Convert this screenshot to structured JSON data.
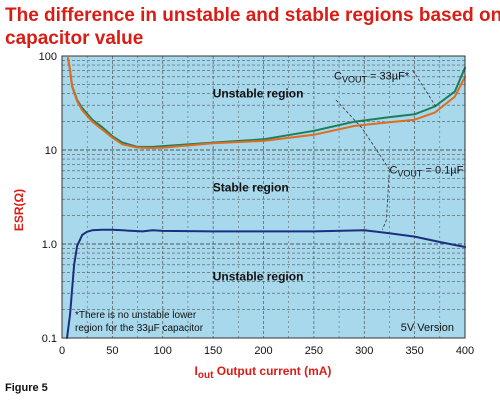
{
  "chart_data": {
    "type": "line",
    "title_lines": [
      "The difference in unstable and stable regions based on output",
      "capacitor value"
    ],
    "xlabel_prefix": "I",
    "xlabel_sub": "out",
    "xlabel_rest": " Output current (mA)",
    "ylabel": "ESR(Ω)",
    "x_ticks": [
      0,
      50,
      100,
      150,
      200,
      250,
      300,
      350,
      400
    ],
    "y_ticks": [
      {
        "value": 0.1,
        "label": "0.1"
      },
      {
        "value": 1,
        "label": "1.0"
      },
      {
        "value": 10,
        "label": "10"
      },
      {
        "value": 100,
        "label": "100"
      }
    ],
    "xlim": [
      0,
      400
    ],
    "ylim": [
      0.1,
      100
    ],
    "y_scale": "log",
    "grid": true,
    "colors": {
      "plot_bg": "#a8d8ec",
      "grid": "#555555",
      "green": "#1a7f5a",
      "orange": "#e06c21",
      "navy": "#1b2f7e",
      "title": "#d91c16"
    },
    "series": [
      {
        "name": "",
        "color": "green",
        "x": [
          6,
          8,
          10,
          15,
          20,
          30,
          40,
          50,
          60,
          75,
          90,
          100,
          150,
          200,
          250,
          290,
          320,
          350,
          370,
          390,
          400
        ],
        "y": [
          95,
          70,
          48,
          34,
          28,
          21,
          17.5,
          14,
          12,
          10.8,
          10.8,
          11,
          12,
          13,
          16,
          20,
          22,
          24,
          29,
          42,
          75
        ]
      },
      {
        "name": "",
        "color": "orange",
        "x": [
          6,
          8,
          10,
          15,
          20,
          30,
          40,
          50,
          60,
          75,
          90,
          100,
          150,
          200,
          250,
          290,
          320,
          350,
          370,
          390,
          400
        ],
        "y": [
          95,
          70,
          47,
          33,
          26.5,
          20,
          16.5,
          13.5,
          11.5,
          10.6,
          10.5,
          10.6,
          11.8,
          12.5,
          14.5,
          18,
          19.5,
          21,
          25,
          37,
          60
        ]
      },
      {
        "name": "",
        "color": "navy",
        "x": [
          5,
          8,
          10,
          12,
          15,
          20,
          25,
          30,
          40,
          50,
          60,
          70,
          80,
          90,
          100,
          150,
          200,
          250,
          300,
          325,
          350,
          375,
          400
        ],
        "y": [
          0.1,
          0.18,
          0.33,
          0.6,
          0.95,
          1.25,
          1.35,
          1.4,
          1.42,
          1.42,
          1.4,
          1.38,
          1.36,
          1.4,
          1.38,
          1.36,
          1.36,
          1.36,
          1.4,
          1.3,
          1.2,
          1.05,
          0.93
        ]
      }
    ],
    "annotations": [
      {
        "prefix": "C",
        "sub": "VOUT",
        "rest": " = 33µF*",
        "x": 270,
        "y": 62
      },
      {
        "prefix": "C",
        "sub": "VOUT",
        "rest": " = 0.1µF",
        "x": 325,
        "y": 6.2
      }
    ],
    "regions": [
      {
        "label": "Unstable region",
        "x": 100,
        "y": 40
      },
      {
        "label": "Stable region",
        "x": 100,
        "y": 4
      },
      {
        "label": "Unstable region",
        "x": 100,
        "y": 0.45
      }
    ],
    "note_lines": [
      "*There is no unstable lower",
      "region for the 33µF capacitor"
    ],
    "version_label": "5V Version",
    "figure_caption": "Figure 5"
  }
}
